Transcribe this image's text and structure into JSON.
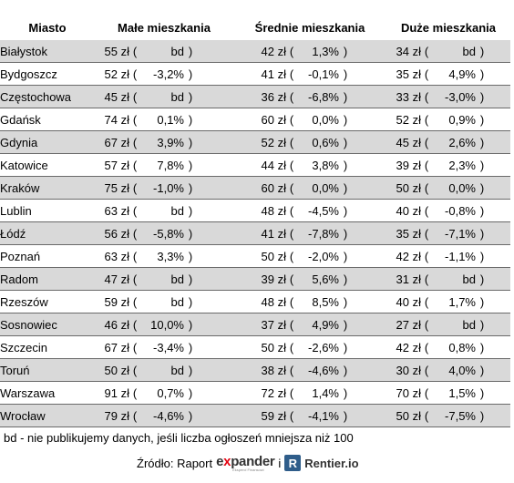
{
  "headers": {
    "city": "Miasto",
    "small": "Małe mieszkania",
    "medium": "Średnie mieszkania",
    "large": "Duże mieszkania"
  },
  "rows": [
    {
      "city": "Białystok",
      "small": {
        "price": "55 zł",
        "change": "bd"
      },
      "medium": {
        "price": "42 zł",
        "change": "1,3%"
      },
      "large": {
        "price": "34 zł",
        "change": "bd"
      }
    },
    {
      "city": "Bydgoszcz",
      "small": {
        "price": "52 zł",
        "change": "-3,2%"
      },
      "medium": {
        "price": "41 zł",
        "change": "-0,1%"
      },
      "large": {
        "price": "35 zł",
        "change": "4,9%"
      }
    },
    {
      "city": "Częstochowa",
      "small": {
        "price": "45 zł",
        "change": "bd"
      },
      "medium": {
        "price": "36 zł",
        "change": "-6,8%"
      },
      "large": {
        "price": "33 zł",
        "change": "-3,0%"
      }
    },
    {
      "city": "Gdańsk",
      "small": {
        "price": "74 zł",
        "change": "0,1%"
      },
      "medium": {
        "price": "60 zł",
        "change": "0,0%"
      },
      "large": {
        "price": "52 zł",
        "change": "0,9%"
      }
    },
    {
      "city": "Gdynia",
      "small": {
        "price": "67 zł",
        "change": "3,9%"
      },
      "medium": {
        "price": "52 zł",
        "change": "0,6%"
      },
      "large": {
        "price": "45 zł",
        "change": "2,6%"
      }
    },
    {
      "city": "Katowice",
      "small": {
        "price": "57 zł",
        "change": "7,8%"
      },
      "medium": {
        "price": "44 zł",
        "change": "3,8%"
      },
      "large": {
        "price": "39 zł",
        "change": "2,3%"
      }
    },
    {
      "city": "Kraków",
      "small": {
        "price": "75 zł",
        "change": "-1,0%"
      },
      "medium": {
        "price": "60 zł",
        "change": "0,0%"
      },
      "large": {
        "price": "50 zł",
        "change": "0,0%"
      }
    },
    {
      "city": "Lublin",
      "small": {
        "price": "63 zł",
        "change": "bd"
      },
      "medium": {
        "price": "48 zł",
        "change": "-4,5%"
      },
      "large": {
        "price": "40 zł",
        "change": "-0,8%"
      }
    },
    {
      "city": "Łódź",
      "small": {
        "price": "56 zł",
        "change": "-5,8%"
      },
      "medium": {
        "price": "41 zł",
        "change": "-7,8%"
      },
      "large": {
        "price": "35 zł",
        "change": "-7,1%"
      }
    },
    {
      "city": "Poznań",
      "small": {
        "price": "63 zł",
        "change": "3,3%"
      },
      "medium": {
        "price": "50 zł",
        "change": "-2,0%"
      },
      "large": {
        "price": "42 zł",
        "change": "-1,1%"
      }
    },
    {
      "city": "Radom",
      "small": {
        "price": "47 zł",
        "change": "bd"
      },
      "medium": {
        "price": "39 zł",
        "change": "5,6%"
      },
      "large": {
        "price": "31 zł",
        "change": "bd"
      }
    },
    {
      "city": "Rzeszów",
      "small": {
        "price": "59 zł",
        "change": "bd"
      },
      "medium": {
        "price": "48 zł",
        "change": "8,5%"
      },
      "large": {
        "price": "40 zł",
        "change": "1,7%"
      }
    },
    {
      "city": "Sosnowiec",
      "small": {
        "price": "46 zł",
        "change": "10,0%"
      },
      "medium": {
        "price": "37 zł",
        "change": "4,9%"
      },
      "large": {
        "price": "27 zł",
        "change": "bd"
      }
    },
    {
      "city": "Szczecin",
      "small": {
        "price": "67 zł",
        "change": "-3,4%"
      },
      "medium": {
        "price": "50 zł",
        "change": "-2,6%"
      },
      "large": {
        "price": "42 zł",
        "change": "0,8%"
      }
    },
    {
      "city": "Toruń",
      "small": {
        "price": "50 zł",
        "change": "bd"
      },
      "medium": {
        "price": "38 zł",
        "change": "-4,6%"
      },
      "large": {
        "price": "30 zł",
        "change": "4,0%"
      }
    },
    {
      "city": "Warszawa",
      "small": {
        "price": "91 zł",
        "change": "0,7%"
      },
      "medium": {
        "price": "72 zł",
        "change": "1,4%"
      },
      "large": {
        "price": "70 zł",
        "change": "1,5%"
      }
    },
    {
      "city": "Wrocław",
      "small": {
        "price": "79 zł",
        "change": "-4,6%"
      },
      "medium": {
        "price": "59 zł",
        "change": "-4,1%"
      },
      "large": {
        "price": "50 zł",
        "change": "-7,5%"
      }
    }
  ],
  "paren_open": "(",
  "paren_close": ")",
  "note": "bd - nie publikujemy danych, jeśli liczba ogłoszeń mniejsza niż 100",
  "source": {
    "prefix": "Źródło: Raport",
    "expander_pre": "e",
    "expander_x": "x",
    "expander_post": "pander",
    "expander_tag": "Eksperci Finansowi",
    "and": "i",
    "rentier_mark": "R",
    "rentier": "Rentier.io"
  },
  "colors": {
    "row_shade": "#d9d9d9",
    "expander_accent": "#e30613",
    "rentier_blue": "#2f5d8a"
  }
}
